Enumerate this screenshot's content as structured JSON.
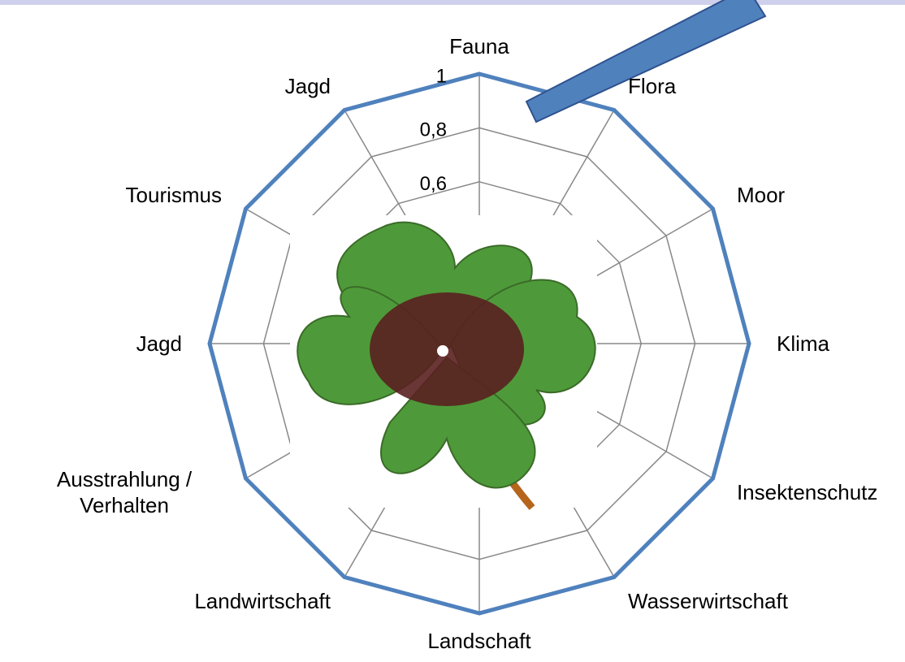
{
  "chart_data": {
    "type": "radar",
    "categories": [
      "Fauna",
      "Flora",
      "Moor",
      "Klima",
      "Insektenschutz",
      "Wasserwirtschaft",
      "Landschaft",
      "Landwirtschaft",
      "Ausstrahlung / Verhalten",
      "Jagd",
      "Tourismus",
      "Jagd"
    ],
    "series": [
      {
        "color": "#4f81bd",
        "values": [
          1,
          1,
          1,
          1,
          1,
          1,
          1,
          1,
          1,
          1,
          1,
          1
        ]
      }
    ],
    "ylim": [
      0,
      1
    ],
    "yticks": [
      {
        "value": 0.6,
        "label": "0,6"
      },
      {
        "value": 0.8,
        "label": "0,8"
      },
      1
    ],
    "grid": true
  }
}
